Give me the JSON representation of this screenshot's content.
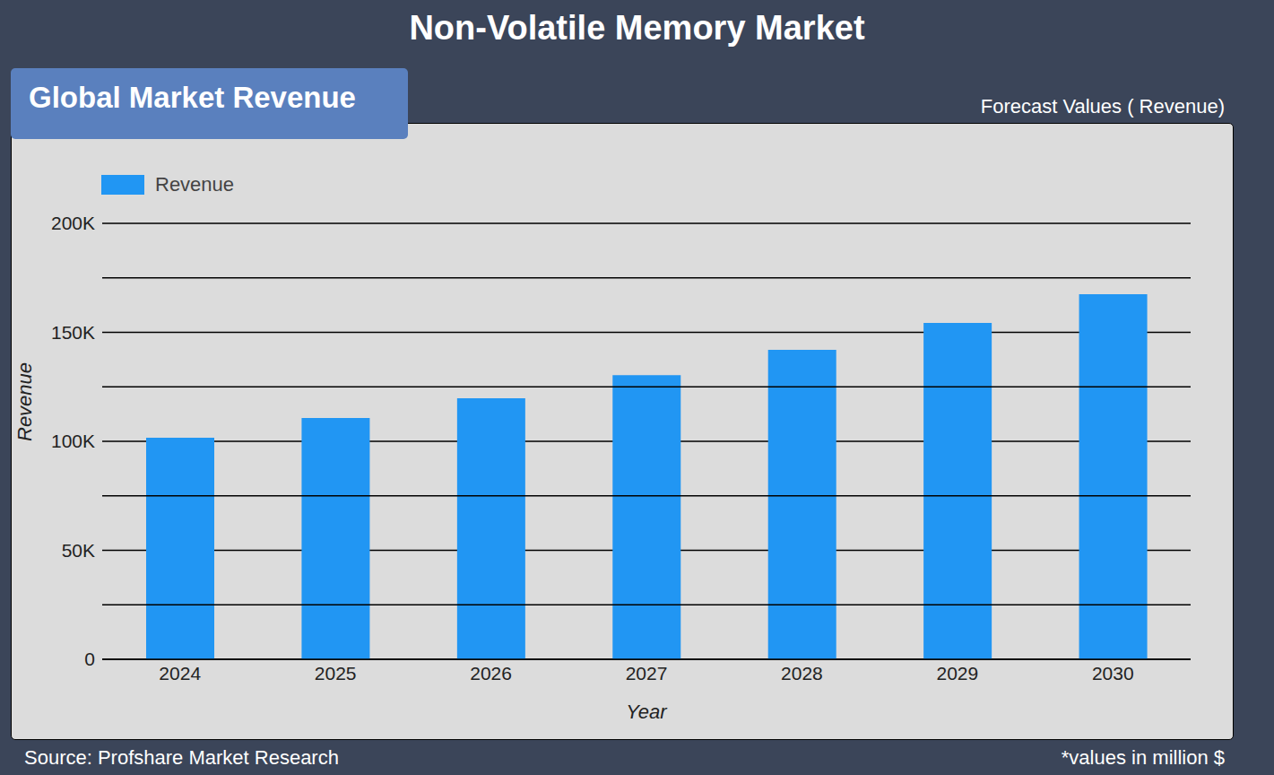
{
  "chart_data": {
    "type": "bar",
    "title": "Non-Volatile Memory Market",
    "subtitle": "Global Market Revenue",
    "annotations": [
      "Forecast Values ( Revenue)",
      "Source: Profshare Market Research",
      "*values in million $"
    ],
    "x_label": "Year",
    "y_label": "Revenue",
    "categories": [
      "2024",
      "2025",
      "2026",
      "2027",
      "2028",
      "2029",
      "2030"
    ],
    "series": [
      {
        "name": "Revenue",
        "color": "#2196f3",
        "values": [
          101600,
          110700,
          119800,
          130400,
          142000,
          154300,
          167500
        ]
      }
    ],
    "ylim": [
      0,
      200000
    ],
    "yticks": [
      0,
      {
        "value": 50000,
        "label": "50K"
      },
      {
        "value": 100000,
        "label": "100K"
      },
      {
        "value": 150000,
        "label": "150K"
      },
      {
        "value": 200000,
        "label": "200K"
      }
    ],
    "grid": true,
    "legend": "top-left"
  }
}
